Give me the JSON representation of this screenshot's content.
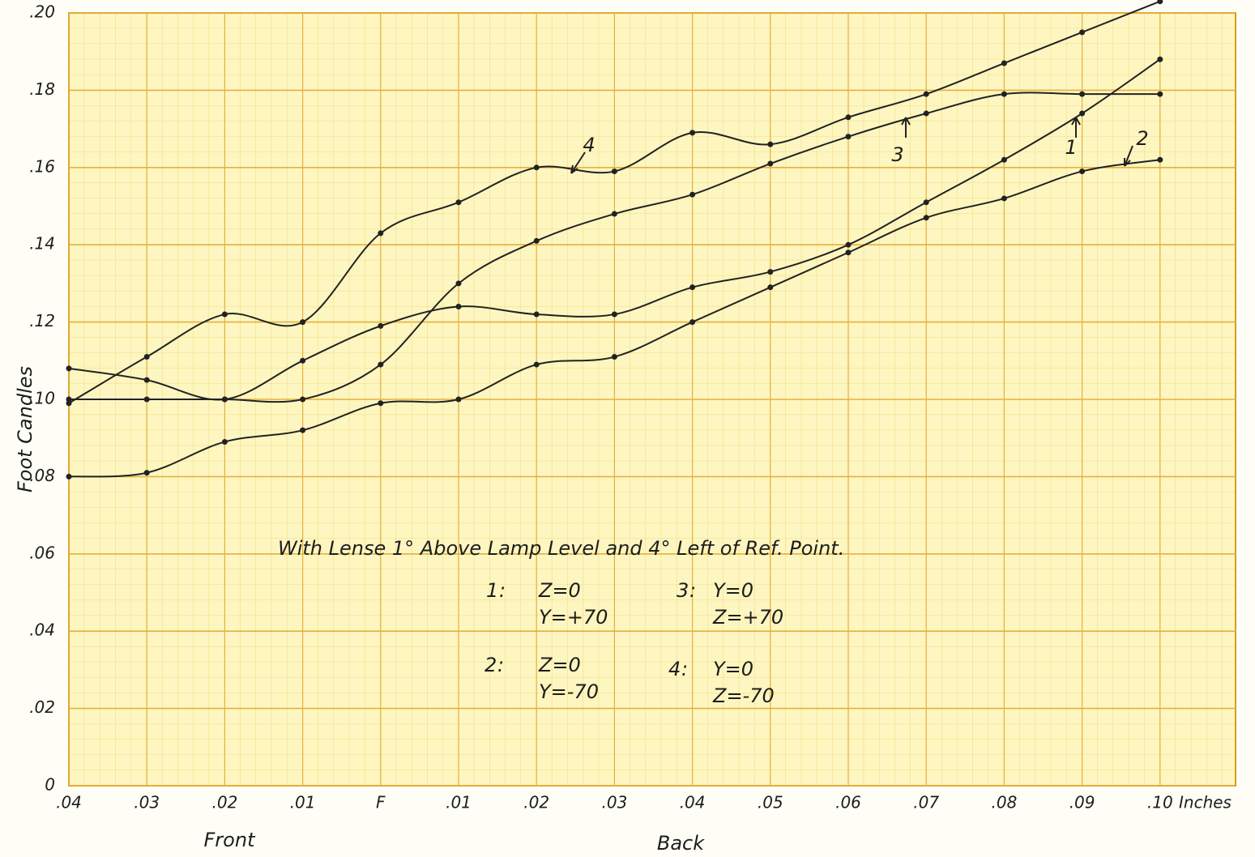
{
  "chart_data": {
    "type": "line",
    "title": "With Lense 1° Above Lamp Level and 4° Left of Ref. Point.",
    "y_label": "Foot Candles",
    "x_unit": "Inches",
    "x_groups": [
      "Front",
      "Back"
    ],
    "categories": [
      ".04",
      ".03",
      ".02",
      ".01",
      "F",
      ".01",
      ".02",
      ".03",
      ".04",
      ".05",
      ".06",
      ".07",
      ".08",
      ".09",
      ".10"
    ],
    "ylim": [
      0,
      0.2
    ],
    "yticks": [
      {
        "value": 0.2,
        "label": ".20"
      },
      {
        "value": 0.18,
        "label": ".18"
      },
      {
        "value": 0.16,
        "label": ".16"
      },
      {
        "value": 0.14,
        "label": ".14"
      },
      {
        "value": 0.12,
        "label": ".12"
      },
      {
        "value": 0.1,
        "label": ".10"
      },
      {
        "value": 0.08,
        "label": ".08"
      },
      {
        "value": 0.06,
        "label": ".06"
      },
      {
        "value": 0.04,
        "label": ".04"
      },
      {
        "value": 0.02,
        "label": ".02"
      },
      0
    ],
    "grid": true,
    "series": [
      {
        "name": "1",
        "condition": [
          "Z=0",
          "Y=+70"
        ],
        "color": "#222222",
        "values": [
          0.108,
          0.105,
          0.1,
          0.11,
          0.119,
          0.124,
          0.122,
          0.122,
          0.129,
          0.133,
          0.14,
          0.151,
          0.162,
          0.174,
          0.188
        ]
      },
      {
        "name": "2",
        "condition": [
          "Z=0",
          "Y=-70"
        ],
        "color": "#222222",
        "values": [
          0.08,
          0.081,
          0.089,
          0.092,
          0.099,
          0.1,
          0.109,
          0.111,
          0.12,
          0.129,
          0.138,
          0.147,
          0.152,
          0.159,
          0.162
        ]
      },
      {
        "name": "3",
        "condition": [
          "Y=0",
          "Z=+70"
        ],
        "color": "#222222",
        "values": [
          0.1,
          0.1,
          0.1,
          0.1,
          0.109,
          0.13,
          0.141,
          0.148,
          0.153,
          0.161,
          0.168,
          0.174,
          0.179,
          0.179,
          0.179
        ]
      },
      {
        "name": "4",
        "condition": [
          "Y=0",
          "Z=-70"
        ],
        "color": "#222222",
        "values": [
          0.099,
          0.111,
          0.122,
          0.12,
          0.143,
          0.151,
          0.16,
          0.159,
          0.169,
          0.166,
          0.173,
          0.179,
          0.187,
          0.195,
          0.203
        ]
      }
    ]
  }
}
